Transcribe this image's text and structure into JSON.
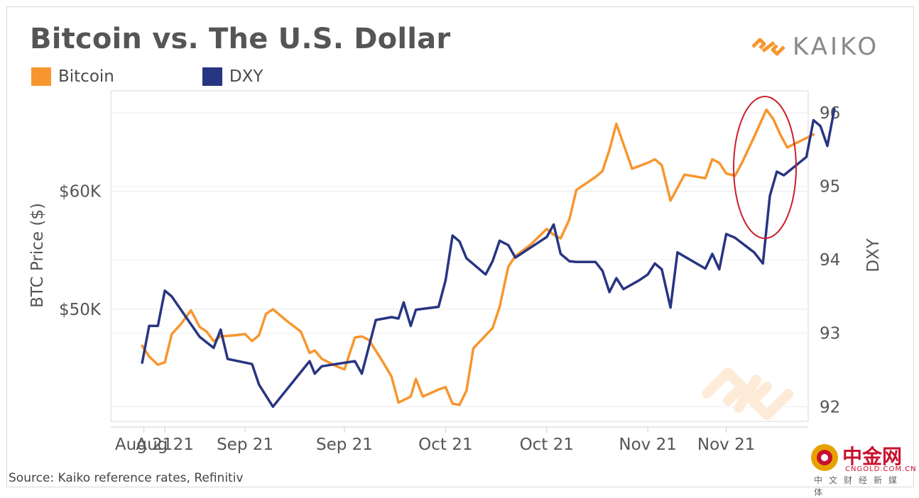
{
  "title": "Bitcoin vs. The U.S. Dollar",
  "logo": {
    "text": "KAIKO",
    "icon": "kaiko-diamond-icon"
  },
  "source": "Source: Kaiko reference rates, Refinitiv",
  "watermark": {
    "name": "中金网",
    "url": "CNGOLD.COM.CN",
    "sub": "中文财经新媒体"
  },
  "colors": {
    "bitcoin": "#f7962f",
    "dxy": "#283582",
    "highlight": "#cc1f2a"
  },
  "chart_data": {
    "type": "line",
    "x_tick_labels": [
      "Aug 21",
      "Aug 21",
      "Sep 21",
      "Sep 21",
      "Oct 21",
      "Oct 21",
      "Nov 21",
      "Nov 21"
    ],
    "x_tick_positions": [
      0.4,
      1.6,
      6.2,
      11.9,
      17.7,
      23.5,
      29.3,
      33.8
    ],
    "xlim": [
      -1.5,
      38.5
    ],
    "left_axis": {
      "label": "BTC Price ($)",
      "ticks": [
        50000,
        60000
      ],
      "tick_labels": [
        "$50K",
        "$60K"
      ],
      "range": [
        40500,
        68500
      ]
    },
    "right_axis": {
      "label": "DXY",
      "ticks": [
        92,
        93,
        94,
        95,
        96
      ],
      "tick_labels": [
        "92",
        "93",
        "94",
        "95",
        "96"
      ],
      "range": [
        91.8,
        96.3
      ]
    },
    "series": [
      {
        "name": "Bitcoin",
        "axis": "left",
        "values": [
          [
            0.3,
            46900
          ],
          [
            0.7,
            46000
          ],
          [
            1.2,
            45300
          ],
          [
            1.6,
            45500
          ],
          [
            2.0,
            47900
          ],
          [
            2.5,
            48700
          ],
          [
            3.1,
            49900
          ],
          [
            3.6,
            48500
          ],
          [
            4.0,
            48100
          ],
          [
            4.4,
            47300
          ],
          [
            4.8,
            47700
          ],
          [
            5.7,
            47800
          ],
          [
            6.2,
            47900
          ],
          [
            6.6,
            47300
          ],
          [
            7.0,
            47800
          ],
          [
            7.4,
            49600
          ],
          [
            7.8,
            50000
          ],
          [
            8.6,
            49000
          ],
          [
            9.4,
            48100
          ],
          [
            9.9,
            46300
          ],
          [
            10.2,
            46500
          ],
          [
            10.6,
            45800
          ],
          [
            11.4,
            45200
          ],
          [
            11.9,
            44900
          ],
          [
            12.5,
            47600
          ],
          [
            12.9,
            47700
          ],
          [
            13.3,
            47400
          ],
          [
            14.0,
            45800
          ],
          [
            14.6,
            44300
          ],
          [
            15.0,
            42100
          ],
          [
            15.7,
            42600
          ],
          [
            16.0,
            44100
          ],
          [
            16.4,
            42600
          ],
          [
            17.3,
            43200
          ],
          [
            17.7,
            43400
          ],
          [
            18.1,
            42000
          ],
          [
            18.5,
            41900
          ],
          [
            18.9,
            43100
          ],
          [
            19.3,
            46700
          ],
          [
            20.4,
            48400
          ],
          [
            20.8,
            50200
          ],
          [
            21.3,
            53600
          ],
          [
            21.7,
            54500
          ],
          [
            22.6,
            55500
          ],
          [
            23.5,
            56800
          ],
          [
            23.9,
            56300
          ],
          [
            24.3,
            56000
          ],
          [
            24.8,
            57600
          ],
          [
            25.2,
            60100
          ],
          [
            26.3,
            61200
          ],
          [
            26.7,
            61700
          ],
          [
            27.1,
            63500
          ],
          [
            27.5,
            65700
          ],
          [
            27.9,
            64000
          ],
          [
            28.4,
            61900
          ],
          [
            29.3,
            62400
          ],
          [
            29.7,
            62700
          ],
          [
            30.1,
            62200
          ],
          [
            30.6,
            59200
          ],
          [
            30.9,
            60000
          ],
          [
            31.4,
            61400
          ],
          [
            32.6,
            61100
          ],
          [
            33.0,
            62700
          ],
          [
            33.4,
            62400
          ],
          [
            33.8,
            61500
          ],
          [
            34.3,
            61300
          ],
          [
            34.7,
            62400
          ],
          [
            35.4,
            64600
          ],
          [
            36.1,
            66900
          ],
          [
            36.5,
            66100
          ],
          [
            36.9,
            64800
          ],
          [
            37.3,
            63700
          ],
          [
            37.7,
            64000
          ],
          [
            38.4,
            64500
          ],
          [
            38.8,
            64800
          ]
        ]
      },
      {
        "name": "DXY",
        "axis": "right",
        "values": [
          [
            0.3,
            92.6
          ],
          [
            0.7,
            93.1
          ],
          [
            1.2,
            93.1
          ],
          [
            1.6,
            93.58
          ],
          [
            2.0,
            93.5
          ],
          [
            3.6,
            92.95
          ],
          [
            4.4,
            92.8
          ],
          [
            4.8,
            93.05
          ],
          [
            5.2,
            92.65
          ],
          [
            6.6,
            92.58
          ],
          [
            7.0,
            92.3
          ],
          [
            7.8,
            92.0
          ],
          [
            9.9,
            92.62
          ],
          [
            10.2,
            92.45
          ],
          [
            10.6,
            92.55
          ],
          [
            12.5,
            92.62
          ],
          [
            12.9,
            92.45
          ],
          [
            13.7,
            93.18
          ],
          [
            14.6,
            93.22
          ],
          [
            15.0,
            93.2
          ],
          [
            15.3,
            93.42
          ],
          [
            15.7,
            93.1
          ],
          [
            16.0,
            93.32
          ],
          [
            17.3,
            93.36
          ],
          [
            17.7,
            93.72
          ],
          [
            18.1,
            94.33
          ],
          [
            18.5,
            94.25
          ],
          [
            18.9,
            94.02
          ],
          [
            20.0,
            93.8
          ],
          [
            20.4,
            93.98
          ],
          [
            20.8,
            94.26
          ],
          [
            21.3,
            94.2
          ],
          [
            21.7,
            94.03
          ],
          [
            23.5,
            94.31
          ],
          [
            23.9,
            94.48
          ],
          [
            24.3,
            94.08
          ],
          [
            24.8,
            93.98
          ],
          [
            25.2,
            93.97
          ],
          [
            26.3,
            93.97
          ],
          [
            26.7,
            93.85
          ],
          [
            27.1,
            93.56
          ],
          [
            27.5,
            93.75
          ],
          [
            27.9,
            93.6
          ],
          [
            28.8,
            93.72
          ],
          [
            29.3,
            93.8
          ],
          [
            29.7,
            93.95
          ],
          [
            30.1,
            93.87
          ],
          [
            30.6,
            93.35
          ],
          [
            31.0,
            94.1
          ],
          [
            32.6,
            93.88
          ],
          [
            33.0,
            94.08
          ],
          [
            33.4,
            93.87
          ],
          [
            33.8,
            94.35
          ],
          [
            34.3,
            94.3
          ],
          [
            35.4,
            94.1
          ],
          [
            35.9,
            93.95
          ],
          [
            36.3,
            94.87
          ],
          [
            36.7,
            95.2
          ],
          [
            37.1,
            95.15
          ],
          [
            38.4,
            95.4
          ],
          [
            38.8,
            95.9
          ],
          [
            39.2,
            95.82
          ],
          [
            39.6,
            95.55
          ],
          [
            40.0,
            96.05
          ]
        ]
      }
    ],
    "grid": true,
    "legend_position": "top-left"
  }
}
